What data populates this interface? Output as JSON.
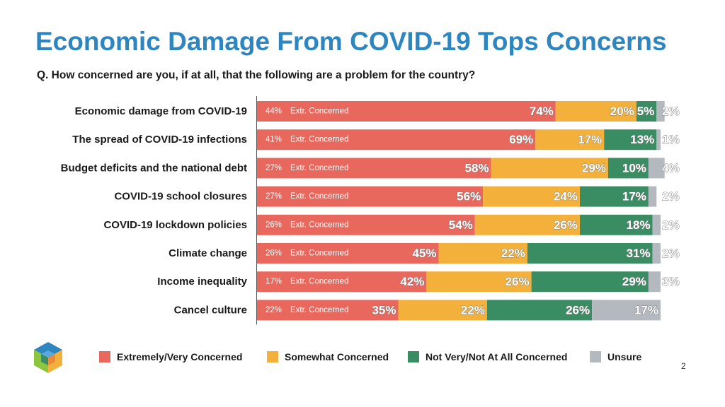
{
  "title": "Economic Damage From COVID-19 Tops Concerns",
  "question": "Q. How concerned are you, if at all, that the following are a problem for the country?",
  "page_number": "2",
  "colors": {
    "title": "#2e86c1",
    "concerned": "#e9685e",
    "somewhat": "#f3b13b",
    "not_very": "#3a8d63",
    "unsure": "#b4b8bf"
  },
  "logo": {
    "icon": "cube-logo-icon"
  },
  "chart_data": {
    "type": "bar",
    "orientation": "horizontal",
    "stacked": true,
    "xlim": [
      0,
      100
    ],
    "categories": [
      "Economic damage from COVID-19",
      "The spread of COVID-19 infections",
      "Budget deficits and the national debt",
      "COVID-19 school closures",
      "COVID-19 lockdown policies",
      "Climate change",
      "Income inequality",
      "Cancel culture"
    ],
    "series": [
      {
        "name": "Extremely/Very Concerned",
        "color": "#e9685e",
        "values": [
          74,
          69,
          58,
          56,
          54,
          45,
          42,
          35
        ]
      },
      {
        "name": "Somewhat Concerned",
        "color": "#f3b13b",
        "values": [
          20,
          17,
          29,
          24,
          26,
          22,
          26,
          22
        ]
      },
      {
        "name": "Not Very/Not At All Concerned",
        "color": "#3a8d63",
        "values": [
          5,
          13,
          10,
          17,
          18,
          31,
          29,
          26
        ]
      },
      {
        "name": "Unsure",
        "color": "#b4b8bf",
        "values": [
          2,
          1,
          4,
          2,
          2,
          2,
          3,
          17
        ]
      }
    ],
    "extremely_concerned": {
      "label": "Extr. Concerned",
      "values": [
        44,
        41,
        27,
        27,
        26,
        26,
        17,
        22
      ]
    },
    "legend_position": "bottom"
  }
}
